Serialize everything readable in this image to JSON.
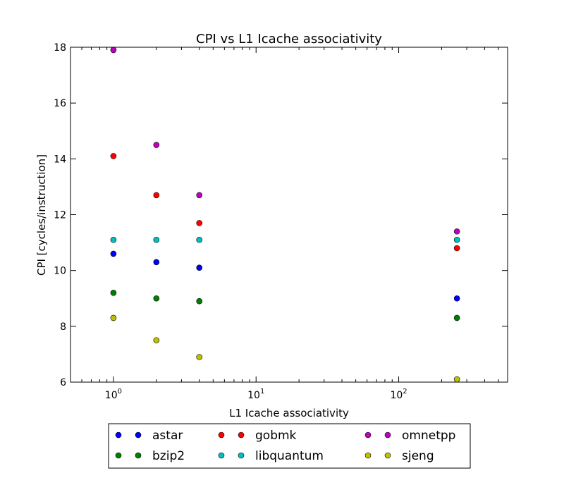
{
  "chart_data": {
    "type": "scatter",
    "title": "CPI vs L1 Icache associativity",
    "xlabel": "L1 Icache associativity",
    "ylabel": "CPI [cycles/instruction]",
    "x_scale": "log",
    "xlim": [
      0.5,
      580
    ],
    "ylim": [
      6,
      18
    ],
    "x_ticks": [
      {
        "value": 1,
        "base": "10",
        "exp": "0"
      },
      {
        "value": 10,
        "base": "10",
        "exp": "1"
      },
      {
        "value": 100,
        "base": "10",
        "exp": "2"
      }
    ],
    "y_ticks": [
      {
        "value": 6,
        "label": "6"
      },
      {
        "value": 8,
        "label": "8"
      },
      {
        "value": 10,
        "label": "10"
      },
      {
        "value": 12,
        "label": "12"
      },
      {
        "value": 14,
        "label": "14"
      },
      {
        "value": 16,
        "label": "16"
      },
      {
        "value": 18,
        "label": "18"
      }
    ],
    "grid": false,
    "legend_position": "below",
    "series": [
      {
        "name": "astar",
        "color": "#0000ff",
        "x": [
          1,
          2,
          4,
          256
        ],
        "y": [
          10.6,
          10.3,
          10.1,
          9.0
        ]
      },
      {
        "name": "bzip2",
        "color": "#008000",
        "x": [
          1,
          2,
          4,
          256
        ],
        "y": [
          9.2,
          9.0,
          8.9,
          8.3
        ]
      },
      {
        "name": "gobmk",
        "color": "#ff0000",
        "x": [
          1,
          2,
          4,
          256
        ],
        "y": [
          14.1,
          12.7,
          11.7,
          10.8
        ]
      },
      {
        "name": "libquantum",
        "color": "#00bfbf",
        "x": [
          1,
          2,
          4,
          256
        ],
        "y": [
          11.1,
          11.1,
          11.1,
          11.1
        ]
      },
      {
        "name": "omnetpp",
        "color": "#bf00bf",
        "x": [
          1,
          2,
          4,
          256
        ],
        "y": [
          17.9,
          14.5,
          12.7,
          11.4
        ]
      },
      {
        "name": "sjeng",
        "color": "#bfbf00",
        "x": [
          1,
          2,
          4,
          256
        ],
        "y": [
          8.3,
          7.5,
          6.9,
          6.1
        ]
      }
    ]
  }
}
